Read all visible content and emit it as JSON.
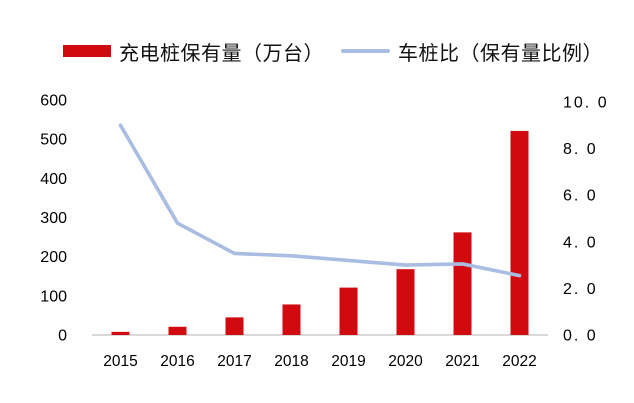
{
  "legend": {
    "bar_label": "充电桩保有量（万台）",
    "line_label": "车桩比（保有量比例）"
  },
  "colors": {
    "bar": "#d10a10",
    "line": "#a9bde2",
    "axis_text": "#000000",
    "axis_line": "#d9d9d9",
    "legend_text": "#111111",
    "background": "#ffffff"
  },
  "chart_data": {
    "type": "bar",
    "subtype": "combo-bar-line-dual-axis",
    "title": "",
    "categories": [
      "2015",
      "2016",
      "2017",
      "2018",
      "2019",
      "2020",
      "2021",
      "2022"
    ],
    "series": [
      {
        "name": "充电桩保有量（万台）",
        "type": "bar",
        "axis": "left",
        "color": "#d10a10",
        "values": [
          8,
          21,
          45,
          78,
          121,
          168,
          262,
          521
        ]
      },
      {
        "name": "车桩比（保有量比例）",
        "type": "line",
        "axis": "right",
        "color": "#a9bde2",
        "values": [
          9.0,
          4.8,
          3.5,
          3.4,
          3.2,
          3.0,
          3.05,
          2.55
        ]
      }
    ],
    "left_axis": {
      "min": 0,
      "max": 600,
      "tick_step": 100,
      "ticks": [
        "0",
        "100",
        "200",
        "300",
        "400",
        "500",
        "600"
      ]
    },
    "right_axis": {
      "min": 0.0,
      "max": 10.0,
      "tick_step": 2.0,
      "ticks": [
        "0. 0",
        "2. 0",
        "4. 0",
        "6. 0",
        "8. 0",
        "10. 0"
      ]
    },
    "grid": false,
    "legend_position": "top"
  }
}
